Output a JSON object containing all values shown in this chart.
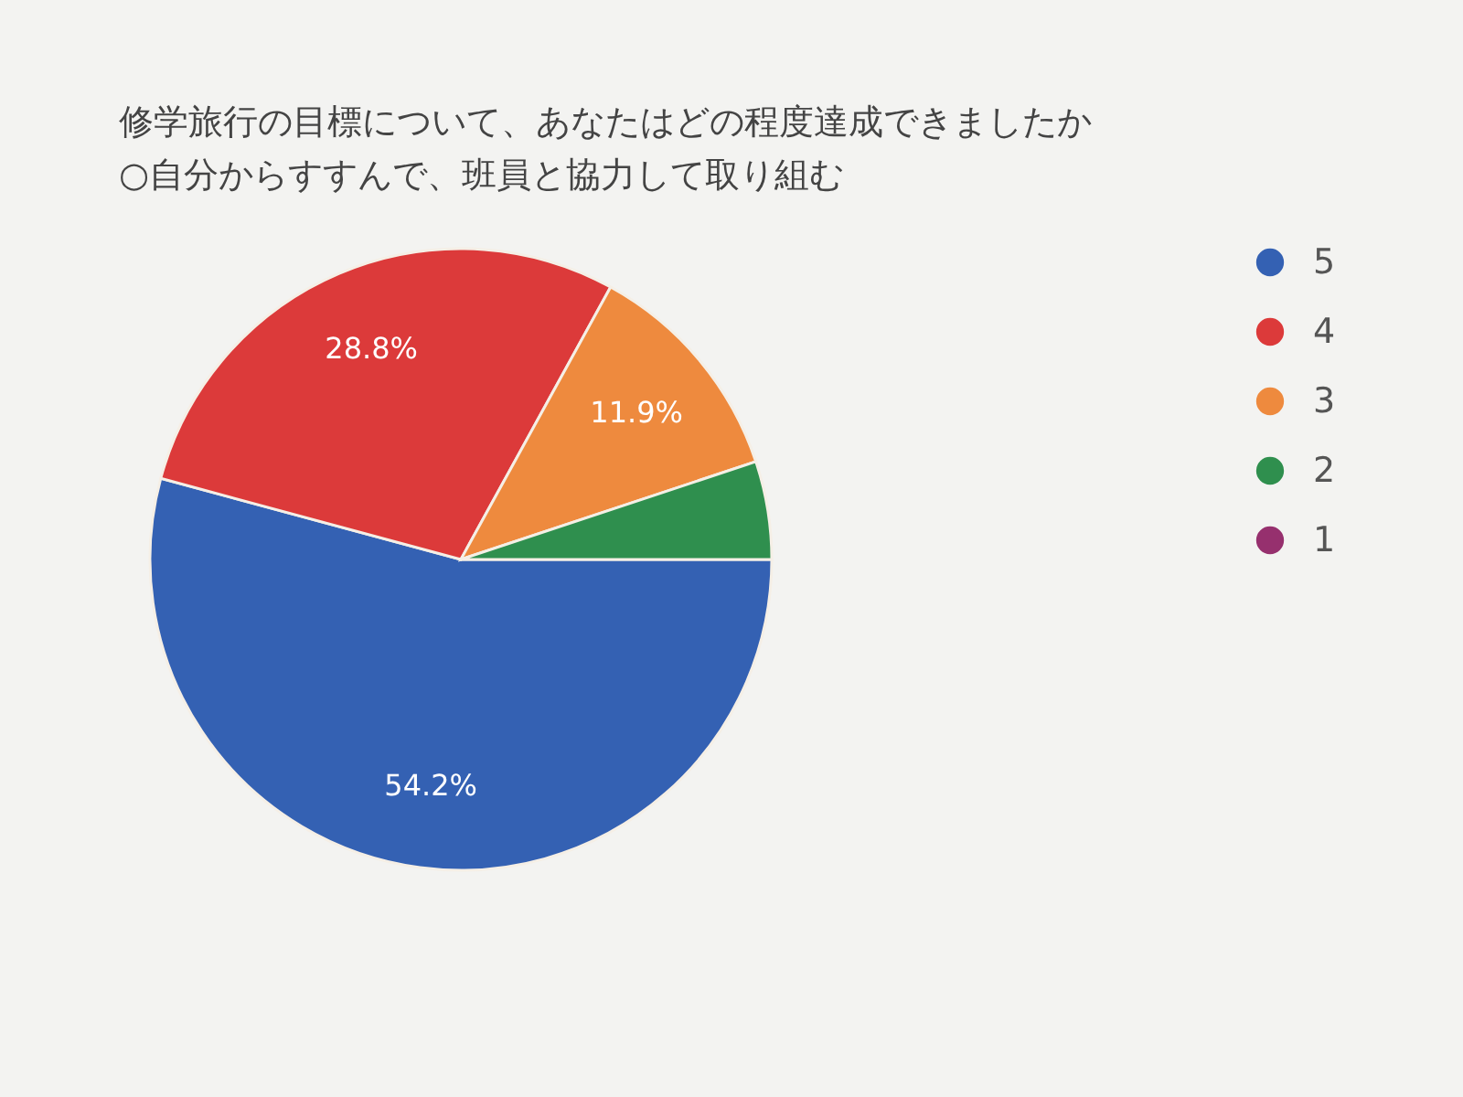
{
  "chart_data": {
    "type": "pie",
    "title": "修学旅行の目標について、あなたはどの程度達成できましたか",
    "subtitle": "○自分からすすんで、班員と協力して取り組む",
    "categories": [
      "5",
      "4",
      "3",
      "2",
      "1"
    ],
    "values": [
      54.2,
      28.8,
      11.9,
      5.1,
      0
    ],
    "colors": [
      "#3461b3",
      "#dc3a3a",
      "#ee8a3e",
      "#2f8f4e",
      "#96306e"
    ],
    "value_labels": [
      "54.2%",
      "28.8%",
      "11.9%",
      null,
      null
    ],
    "legend": "top right"
  }
}
